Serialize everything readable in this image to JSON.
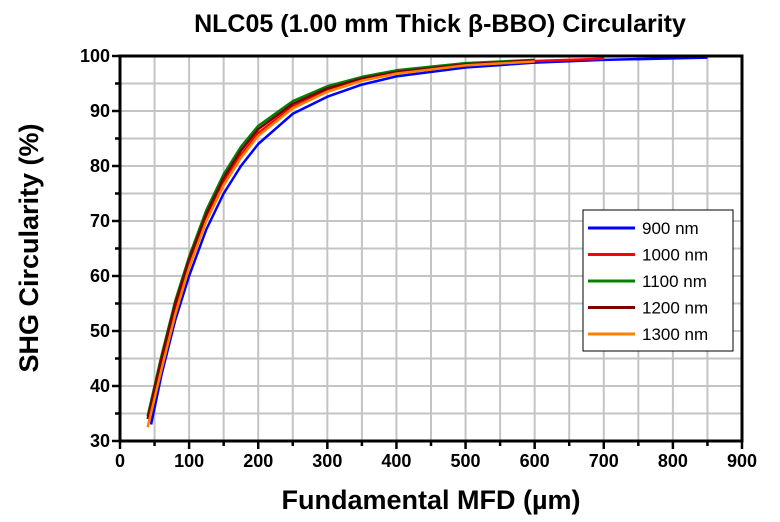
{
  "chart_data": {
    "type": "line",
    "title": "NLC05 (1.00 mm Thick β-BBO) Circularity",
    "xlabel": "Fundamental MFD (µm)",
    "ylabel": "SHG Circularity (%)",
    "xlim": [
      0,
      900
    ],
    "ylim": [
      30,
      100
    ],
    "xticks": [
      0,
      100,
      200,
      300,
      400,
      500,
      600,
      700,
      800,
      900
    ],
    "yticks": [
      30,
      40,
      50,
      60,
      70,
      80,
      90,
      100
    ],
    "grid": true,
    "legend_position": "right",
    "series": [
      {
        "name": "900 nm",
        "color": "#0000ff",
        "x": [
          45,
          60,
          80,
          100,
          125,
          150,
          175,
          200,
          250,
          300,
          350,
          400,
          500,
          600,
          700,
          850
        ],
        "y": [
          33,
          42,
          52,
          60,
          68.5,
          75,
          80,
          84,
          89.5,
          92.6,
          94.8,
          96.3,
          97.9,
          98.8,
          99.3,
          99.7
        ]
      },
      {
        "name": "1000 nm",
        "color": "#ff0000",
        "x": [
          42,
          60,
          80,
          100,
          125,
          150,
          175,
          200,
          250,
          300,
          350,
          400,
          500,
          600,
          700
        ],
        "y": [
          33.5,
          44,
          54,
          62,
          70.5,
          77,
          82,
          86,
          90.8,
          93.7,
          95.6,
          96.9,
          98.4,
          99.1,
          99.5
        ]
      },
      {
        "name": "1100 nm",
        "color": "#008000",
        "x": [
          40,
          60,
          80,
          100,
          125,
          150,
          175,
          200,
          250,
          300,
          350,
          400,
          500,
          600
        ],
        "y": [
          34.5,
          45.5,
          55.5,
          63.5,
          72,
          78.5,
          83.5,
          87.3,
          91.8,
          94.5,
          96.2,
          97.4,
          98.7,
          99.3
        ]
      },
      {
        "name": "1200 nm",
        "color": "#800000",
        "x": [
          40,
          60,
          80,
          100,
          125,
          150,
          175,
          200,
          250,
          300,
          350,
          400,
          500,
          600
        ],
        "y": [
          34,
          45,
          55,
          63,
          71.3,
          77.8,
          82.8,
          86.7,
          91.3,
          94.1,
          95.9,
          97.1,
          98.5,
          99.2
        ]
      },
      {
        "name": "1300 nm",
        "color": "#ff8000",
        "x": [
          40,
          60,
          80,
          100,
          125,
          150,
          175,
          200,
          250,
          300,
          350,
          400,
          500,
          600
        ],
        "y": [
          32.5,
          43,
          53,
          61.5,
          70,
          76.5,
          81.5,
          85.5,
          90.5,
          93.5,
          95.5,
          96.8,
          98.3,
          99.0
        ]
      }
    ]
  }
}
